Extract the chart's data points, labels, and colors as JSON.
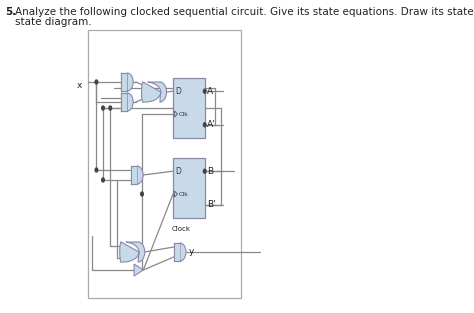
{
  "title_number": "5.",
  "title_text1": "Analyze the following clocked sequential circuit. Give its state equations. Draw its state table and",
  "title_text2": "state diagram.",
  "bg_color": "#ffffff",
  "gate_fill": "#c8daea",
  "gate_edge": "#8888aa",
  "wire_color": "#888888",
  "text_color": "#222222",
  "font_size_title": 7.5,
  "font_size_label": 6.5,
  "font_size_small": 5.0
}
